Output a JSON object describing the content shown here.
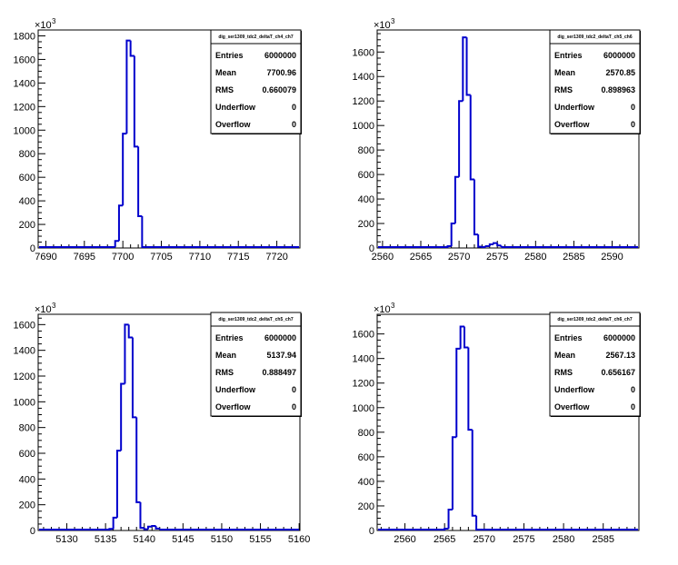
{
  "chart_data": [
    {
      "type": "bar",
      "histogram": "dig_ser1309_tdc2_deltaT_ch4_ch7",
      "xlim": [
        7689,
        7723
      ],
      "ylim": [
        0,
        1850
      ],
      "y_multiplier_label": "×10",
      "y_multiplier_exponent": "3",
      "xticks": [
        "7690",
        "7695",
        "7700",
        "7705",
        "7710",
        "7715",
        "7720"
      ],
      "xtick_values": [
        7690,
        7695,
        7700,
        7705,
        7710,
        7715,
        7720
      ],
      "yticks": [
        "0",
        "200",
        "400",
        "600",
        "800",
        "1000",
        "1200",
        "1400",
        "1600",
        "1800"
      ],
      "ytick_values": [
        0,
        200,
        400,
        600,
        800,
        1000,
        1200,
        1400,
        1600,
        1800
      ],
      "bin_edges": [
        7698.5,
        7699.0,
        7699.5,
        7700.0,
        7700.5,
        7701.0,
        7701.5,
        7702.0,
        7702.5,
        7703.0
      ],
      "values": [
        2,
        60,
        360,
        970,
        1760,
        1630,
        860,
        270,
        4
      ],
      "stats": {
        "title": "dig_ser1309_tdc2_deltaT_ch4_ch7",
        "rows": [
          {
            "key": "Entries",
            "value": "6000000"
          },
          {
            "key": "Mean",
            "value": "7700.96"
          },
          {
            "key": "RMS",
            "value": "0.660079"
          },
          {
            "key": "Underflow",
            "value": "0"
          },
          {
            "key": "Overflow",
            "value": "0"
          }
        ]
      }
    },
    {
      "type": "bar",
      "histogram": "dig_ser1309_tdc2_deltaT_ch5_ch6",
      "xlim": [
        2559.3,
        2593.5
      ],
      "ylim": [
        0,
        1780
      ],
      "y_multiplier_label": "×10",
      "y_multiplier_exponent": "3",
      "xticks": [
        "2560",
        "2565",
        "2570",
        "2575",
        "2580",
        "2585",
        "2590"
      ],
      "xtick_values": [
        2560,
        2565,
        2570,
        2575,
        2580,
        2585,
        2590
      ],
      "yticks": [
        "0",
        "200",
        "400",
        "600",
        "800",
        "1000",
        "1200",
        "1400",
        "1600"
      ],
      "ytick_values": [
        0,
        200,
        400,
        600,
        800,
        1000,
        1200,
        1400,
        1600
      ],
      "bin_edges": [
        2568.5,
        2569.0,
        2569.5,
        2570.0,
        2570.5,
        2571.0,
        2571.5,
        2572.0,
        2572.5,
        2573.0,
        2573.5,
        2574.0,
        2574.5,
        2575.0,
        2575.5
      ],
      "values": [
        15,
        200,
        580,
        1200,
        1720,
        1250,
        560,
        110,
        10,
        3,
        15,
        30,
        40,
        20
      ],
      "stats": {
        "title": "dig_ser1309_tdc2_deltaT_ch5_ch6",
        "rows": [
          {
            "key": "Entries",
            "value": "6000000"
          },
          {
            "key": "Mean",
            "value": "2570.85"
          },
          {
            "key": "RMS",
            "value": "0.898963"
          },
          {
            "key": "Underflow",
            "value": "0"
          },
          {
            "key": "Overflow",
            "value": "0"
          }
        ]
      }
    },
    {
      "type": "bar",
      "histogram": "dig_ser1309_tdc2_deltaT_ch5_ch7",
      "xlim": [
        5126.3,
        5160.1
      ],
      "ylim": [
        0,
        1680
      ],
      "y_multiplier_label": "×10",
      "y_multiplier_exponent": "3",
      "xticks": [
        "5130",
        "5135",
        "5140",
        "5145",
        "5150",
        "5155",
        "5160"
      ],
      "xtick_values": [
        5130,
        5135,
        5140,
        5145,
        5150,
        5155,
        5160
      ],
      "yticks": [
        "0",
        "200",
        "400",
        "600",
        "800",
        "1000",
        "1200",
        "1400",
        "1600"
      ],
      "ytick_values": [
        0,
        200,
        400,
        600,
        800,
        1000,
        1200,
        1400,
        1600
      ],
      "bin_edges": [
        5135.5,
        5136.0,
        5136.5,
        5137.0,
        5137.5,
        5138.0,
        5138.5,
        5139.0,
        5139.5,
        5140.0,
        5140.5,
        5141.0,
        5141.5,
        5142.0
      ],
      "values": [
        12,
        100,
        620,
        1140,
        1600,
        1500,
        880,
        220,
        20,
        10,
        30,
        35,
        15
      ],
      "stats": {
        "title": "dig_ser1309_tdc2_deltaT_ch5_ch7",
        "rows": [
          {
            "key": "Entries",
            "value": "6000000"
          },
          {
            "key": "Mean",
            "value": "5137.94"
          },
          {
            "key": "RMS",
            "value": "0.888497"
          },
          {
            "key": "Underflow",
            "value": "0"
          },
          {
            "key": "Overflow",
            "value": "0"
          }
        ]
      }
    },
    {
      "type": "bar",
      "histogram": "dig_ser1309_tdc2_deltaT_ch6_ch7",
      "xlim": [
        2556.5,
        2589.5
      ],
      "ylim": [
        0,
        1760
      ],
      "y_multiplier_label": "×10",
      "y_multiplier_exponent": "3",
      "xticks": [
        "2560",
        "2565",
        "2570",
        "2575",
        "2580",
        "2585"
      ],
      "xtick_values": [
        2560,
        2565,
        2570,
        2575,
        2580,
        2585
      ],
      "yticks": [
        "0",
        "200",
        "400",
        "600",
        "800",
        "1000",
        "1200",
        "1400",
        "1600"
      ],
      "ytick_values": [
        0,
        200,
        400,
        600,
        800,
        1000,
        1200,
        1400,
        1600
      ],
      "bin_edges": [
        2565.0,
        2565.5,
        2566.0,
        2566.5,
        2567.0,
        2567.5,
        2568.0,
        2568.5,
        2569.0,
        2569.5
      ],
      "values": [
        15,
        170,
        760,
        1480,
        1660,
        1490,
        820,
        120,
        6
      ],
      "stats": {
        "title": "dig_ser1309_tdc2_deltaT_ch6_ch7",
        "rows": [
          {
            "key": "Entries",
            "value": "6000000"
          },
          {
            "key": "Mean",
            "value": "2567.13"
          },
          {
            "key": "RMS",
            "value": "0.656167"
          },
          {
            "key": "Underflow",
            "value": "0"
          },
          {
            "key": "Overflow",
            "value": "0"
          }
        ]
      }
    }
  ]
}
